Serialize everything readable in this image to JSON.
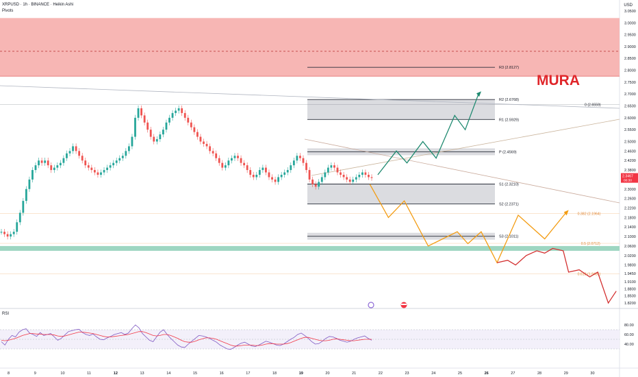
{
  "header": {
    "symbol_line": "XRPUSD · 1h · BINANCE · Heikin Ashi",
    "indicator": "Pivots",
    "currency": "USD"
  },
  "rsi": {
    "label": "RSI",
    "ticks": [
      "80.00",
      "60.00",
      "40.00"
    ],
    "colors": {
      "rsi": "#7e57c2",
      "ma": "#f23645"
    }
  },
  "watermark": {
    "text": "MURA",
    "color": "#e0262a"
  },
  "chart_data": [
    {
      "type": "candlestick",
      "title": "XRPUSD · 1h · BINANCE · Heikin Ashi",
      "ylim": [
        1.8,
        3.07
      ],
      "y_ticks": [
        "3.0500",
        "3.0000",
        "2.9500",
        "2.9000",
        "2.8500",
        "2.8000",
        "2.7500",
        "2.7000",
        "2.6500",
        "2.6000",
        "2.5500",
        "2.5000",
        "2.4600",
        "2.4200",
        "2.3800",
        "2.3400",
        "2.3000",
        "2.2600",
        "2.2200",
        "2.1800",
        "2.1400",
        "2.1000",
        "2.0600",
        "2.0200",
        "1.9800",
        "1.9450",
        "1.9100",
        "1.8800",
        "1.8500",
        "1.8200"
      ],
      "x_ticks": [
        "8",
        "9",
        "10",
        "11",
        "12",
        "13",
        "14",
        "15",
        "16",
        "17",
        "18",
        "19",
        "20",
        "21",
        "22",
        "23",
        "24",
        "25",
        "26",
        "27",
        "28",
        "29",
        "30"
      ],
      "current_price": {
        "value": "2.3467",
        "countdown": "00:30",
        "color": "#f23645"
      },
      "pivots": [
        {
          "label": "R3 (2.8127)",
          "value": 2.8127
        },
        {
          "label": "R2 (2.6768)",
          "value": 2.6768
        },
        {
          "label": "R1 (2.5929)",
          "value": 2.5929
        },
        {
          "label": "P (2.4569)",
          "value": 2.4569
        },
        {
          "label": "S1 (2.3210)",
          "value": 2.321
        },
        {
          "label": "S2 (2.2371)",
          "value": 2.2371
        },
        {
          "label": "S3 (2.1011)",
          "value": 2.1011
        }
      ],
      "fib_levels": [
        {
          "label": "0 (2.6559)",
          "value": 2.6559
        },
        {
          "label": "0.382 (2.1964)",
          "value": 2.1964
        },
        {
          "label": "0.5 (2.0712)",
          "value": 2.0712
        },
        {
          "label": "0.618 (1.9431)",
          "value": 1.9431
        }
      ],
      "zones": [
        {
          "name": "supply",
          "from": 2.775,
          "to": 3.02,
          "color": "#f7b6b4"
        },
        {
          "name": "demand",
          "from": 2.045,
          "to": 2.06,
          "color": "#9ed6c1"
        }
      ],
      "price_path": [
        2.12,
        2.11,
        2.1,
        2.11,
        2.12,
        2.16,
        2.2,
        2.25,
        2.3,
        2.34,
        2.38,
        2.4,
        2.42,
        2.41,
        2.42,
        2.4,
        2.38,
        2.39,
        2.4,
        2.41,
        2.43,
        2.45,
        2.46,
        2.48,
        2.46,
        2.44,
        2.42,
        2.4,
        2.39,
        2.38,
        2.37,
        2.36,
        2.37,
        2.38,
        2.39,
        2.4,
        2.41,
        2.42,
        2.43,
        2.44,
        2.46,
        2.48,
        2.52,
        2.6,
        2.64,
        2.61,
        2.58,
        2.55,
        2.52,
        2.5,
        2.51,
        2.53,
        2.55,
        2.58,
        2.6,
        2.62,
        2.63,
        2.64,
        2.62,
        2.6,
        2.58,
        2.56,
        2.54,
        2.52,
        2.5,
        2.49,
        2.48,
        2.46,
        2.45,
        2.43,
        2.41,
        2.39,
        2.4,
        2.42,
        2.43,
        2.44,
        2.43,
        2.41,
        2.4,
        2.38,
        2.36,
        2.35,
        2.36,
        2.38,
        2.39,
        2.37,
        2.35,
        2.34,
        2.33,
        2.35,
        2.36,
        2.37,
        2.38,
        2.4,
        2.42,
        2.44,
        2.43,
        2.41,
        2.38,
        2.34,
        2.32,
        2.31,
        2.33,
        2.35,
        2.37,
        2.39,
        2.4,
        2.39,
        2.37,
        2.36,
        2.35,
        2.34,
        2.33,
        2.34,
        2.35,
        2.36,
        2.37,
        2.36,
        2.35,
        2.3467
      ],
      "bull_projection": [
        [
          21.9,
          2.36
        ],
        [
          22.6,
          2.46
        ],
        [
          23.0,
          2.41
        ],
        [
          23.6,
          2.5
        ],
        [
          24.1,
          2.43
        ],
        [
          24.8,
          2.61
        ],
        [
          25.2,
          2.55
        ],
        [
          25.7,
          2.7
        ]
      ],
      "bear_projection": [
        [
          21.6,
          2.32
        ],
        [
          22.3,
          2.18
        ],
        [
          22.9,
          2.25
        ],
        [
          23.8,
          2.06
        ],
        [
          24.9,
          2.12
        ],
        [
          25.3,
          2.07
        ],
        [
          25.8,
          2.12
        ],
        [
          26.4,
          1.99
        ],
        [
          27.2,
          2.19
        ],
        [
          28.2,
          2.09
        ],
        [
          29.0,
          2.2
        ]
      ],
      "red_projection": [
        [
          26.4,
          1.99
        ],
        [
          26.8,
          2.0
        ],
        [
          27.1,
          1.98
        ],
        [
          27.5,
          2.02
        ],
        [
          27.9,
          2.04
        ],
        [
          28.2,
          2.03
        ],
        [
          28.5,
          2.05
        ],
        [
          28.9,
          2.04
        ],
        [
          29.1,
          1.95
        ],
        [
          29.5,
          1.96
        ],
        [
          29.9,
          1.93
        ],
        [
          30.2,
          1.95
        ],
        [
          30.6,
          1.82
        ],
        [
          30.9,
          1.87
        ]
      ]
    },
    {
      "type": "line",
      "title": "RSI",
      "ylim": [
        0,
        100
      ],
      "series": [
        {
          "values": [
            45,
            38,
            50,
            58,
            55,
            65,
            70,
            72,
            63,
            60,
            56,
            64,
            58,
            60,
            62,
            55,
            48,
            52,
            59,
            66,
            68,
            70,
            71,
            64,
            60,
            58,
            61,
            55,
            50,
            49,
            53,
            56,
            60,
            62,
            64,
            60,
            63,
            72,
            80,
            74,
            62,
            55,
            48,
            45,
            55,
            65,
            70,
            60,
            52,
            45,
            38,
            34,
            33,
            40,
            46,
            52,
            58,
            57,
            55,
            52,
            48,
            44,
            38,
            34,
            30,
            29,
            33,
            38,
            42,
            44,
            40,
            36,
            35,
            38,
            42,
            46,
            44,
            41,
            38,
            37,
            40,
            45,
            50,
            54,
            60,
            63,
            58,
            52,
            45,
            40,
            41,
            46,
            52,
            56,
            55,
            52,
            48,
            46,
            44,
            46,
            50,
            53,
            55,
            57,
            52,
            48
          ]
        },
        {
          "values": [
            48,
            47,
            48,
            50,
            52,
            55,
            58,
            60,
            62,
            62,
            61,
            61,
            60,
            60,
            60,
            59,
            57,
            56,
            57,
            59,
            61,
            63,
            65,
            65,
            64,
            63,
            62,
            60,
            58,
            56,
            55,
            55,
            56,
            57,
            58,
            59,
            60,
            62,
            64,
            66,
            66,
            64,
            61,
            58,
            57,
            58,
            60,
            60,
            58,
            55,
            52,
            48,
            45,
            44,
            44,
            46,
            49,
            51,
            53,
            53,
            52,
            50,
            47,
            44,
            41,
            38,
            36,
            36,
            37,
            38,
            38,
            38,
            37,
            37,
            38,
            40,
            41,
            41,
            40,
            40,
            40,
            41,
            43,
            46,
            49,
            52,
            54,
            54,
            52,
            50,
            48,
            47,
            47,
            48,
            50,
            51,
            50,
            49,
            48,
            47,
            47,
            48,
            49,
            50,
            50,
            50
          ]
        }
      ],
      "y_ticks": [
        "80.00",
        "60.00",
        "40.00"
      ]
    }
  ]
}
